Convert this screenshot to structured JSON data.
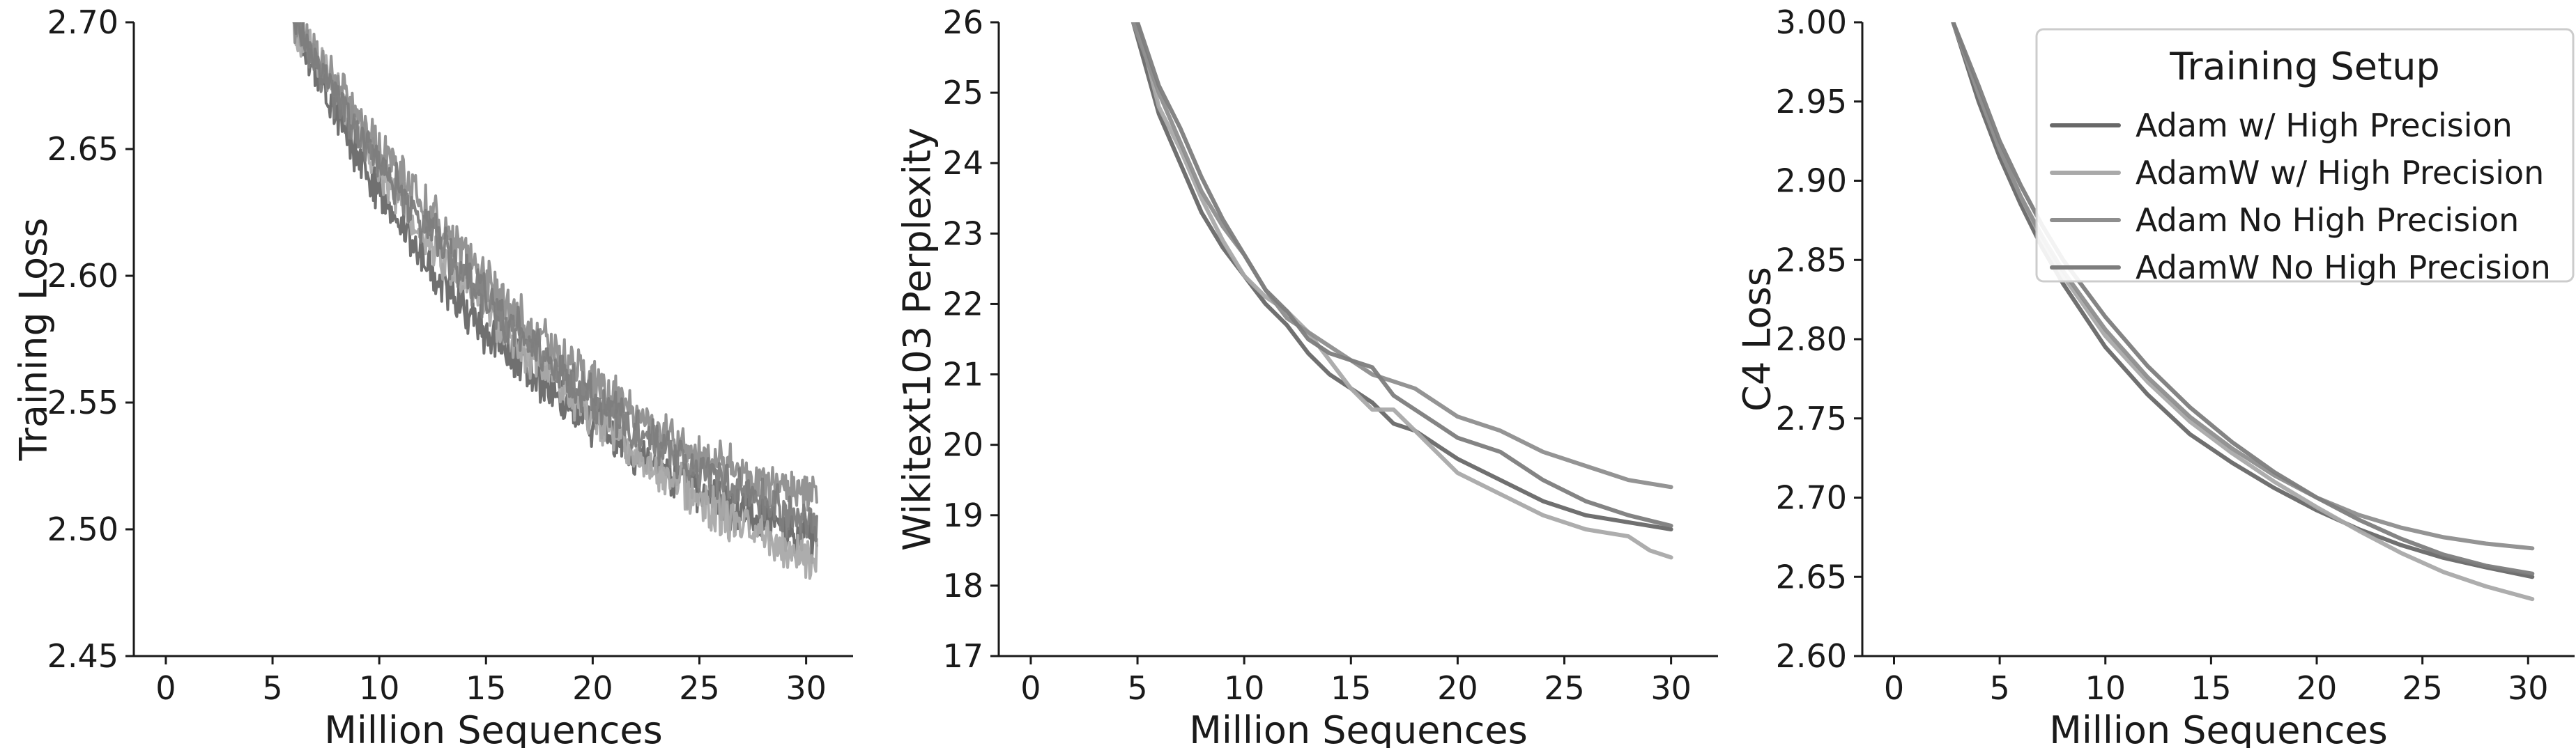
{
  "legend": {
    "title": "Training Setup",
    "entries": [
      {
        "label": "Adam w/ High Precision",
        "color": "#686868"
      },
      {
        "label": "AdamW w/ High Precision",
        "color": "#a9a9a9"
      },
      {
        "label": "Adam No High Precision",
        "color": "#8e8e8e"
      },
      {
        "label": "AdamW No High Precision",
        "color": "#7d7d7d"
      }
    ]
  },
  "chart_data": [
    {
      "type": "line",
      "xlabel": "Million Sequences",
      "ylabel": "Training Loss",
      "xlim": [
        -1.5,
        32.2
      ],
      "ylim": [
        2.45,
        2.7
      ],
      "xticks": [
        0,
        5,
        10,
        15,
        20,
        25,
        30
      ],
      "yticks": [
        "2.45",
        "2.50",
        "2.55",
        "2.60",
        "2.65",
        "2.70"
      ],
      "noise": 0.007,
      "series": [
        {
          "name": "Adam w/ High Precision",
          "color": "#686868",
          "x": [
            6,
            8,
            10,
            12,
            15,
            18,
            20,
            22,
            25,
            28,
            30.5
          ],
          "y": [
            2.7,
            2.664,
            2.632,
            2.608,
            2.578,
            2.556,
            2.542,
            2.53,
            2.515,
            2.503,
            2.495
          ]
        },
        {
          "name": "AdamW w/ High Precision",
          "color": "#a9a9a9",
          "x": [
            6,
            8,
            10,
            12,
            15,
            18,
            20,
            22,
            25,
            28,
            30.5
          ],
          "y": [
            2.7,
            2.672,
            2.642,
            2.618,
            2.586,
            2.56,
            2.545,
            2.531,
            2.512,
            2.496,
            2.487
          ]
        },
        {
          "name": "Adam No High Precision",
          "color": "#8e8e8e",
          "x": [
            6,
            8,
            10,
            12,
            15,
            18,
            20,
            22,
            25,
            28,
            30.5
          ],
          "y": [
            2.7,
            2.676,
            2.65,
            2.628,
            2.597,
            2.572,
            2.558,
            2.545,
            2.53,
            2.518,
            2.512
          ]
        },
        {
          "name": "AdamW No High Precision",
          "color": "#7d7d7d",
          "x": [
            6,
            8,
            10,
            12,
            15,
            18,
            20,
            22,
            25,
            28,
            30.5
          ],
          "y": [
            2.7,
            2.67,
            2.645,
            2.622,
            2.59,
            2.565,
            2.551,
            2.539,
            2.523,
            2.51,
            2.503
          ]
        }
      ]
    },
    {
      "type": "line",
      "xlabel": "Million Sequences",
      "ylabel": "Wikitext103 Perplexity",
      "xlim": [
        -1.5,
        32.2
      ],
      "ylim": [
        17,
        26
      ],
      "xticks": [
        0,
        5,
        10,
        15,
        20,
        25,
        30
      ],
      "yticks": [
        "17",
        "18",
        "19",
        "20",
        "21",
        "22",
        "23",
        "24",
        "25",
        "26"
      ],
      "series": [
        {
          "name": "Adam w/ High Precision",
          "color": "#686868",
          "x": [
            4.8,
            6,
            7,
            8,
            9,
            10,
            11,
            12,
            13,
            14,
            15,
            16,
            17,
            18,
            19,
            20,
            22,
            24,
            26,
            28,
            30
          ],
          "y": [
            26,
            24.7,
            24.0,
            23.3,
            22.8,
            22.4,
            22.0,
            21.7,
            21.3,
            21.0,
            20.8,
            20.6,
            20.3,
            20.2,
            20.0,
            19.8,
            19.5,
            19.2,
            19.0,
            18.9,
            18.8
          ]
        },
        {
          "name": "AdamW w/ High Precision",
          "color": "#a9a9a9",
          "x": [
            5,
            6,
            7,
            8,
            9,
            10,
            11,
            12,
            13,
            14,
            15,
            16,
            17,
            18,
            19,
            20,
            22,
            24,
            26,
            28,
            29,
            30
          ],
          "y": [
            26,
            24.8,
            24.2,
            23.5,
            22.9,
            22.4,
            22.1,
            21.9,
            21.6,
            21.2,
            20.8,
            20.5,
            20.5,
            20.2,
            19.9,
            19.6,
            19.3,
            19.0,
            18.8,
            18.7,
            18.5,
            18.4
          ]
        },
        {
          "name": "Adam No High Precision",
          "color": "#8e8e8e",
          "x": [
            4.8,
            6,
            7,
            8,
            9,
            10,
            11,
            12,
            13,
            14,
            15,
            16,
            17,
            18,
            19,
            20,
            22,
            24,
            26,
            28,
            30
          ],
          "y": [
            26,
            25.0,
            24.3,
            23.6,
            23.1,
            22.7,
            22.2,
            21.8,
            21.6,
            21.4,
            21.2,
            21.0,
            20.9,
            20.8,
            20.6,
            20.4,
            20.2,
            19.9,
            19.7,
            19.5,
            19.4
          ]
        },
        {
          "name": "AdamW No High Precision",
          "color": "#7d7d7d",
          "x": [
            5,
            6,
            7,
            8,
            9,
            10,
            11,
            12,
            13,
            14,
            15,
            16,
            17,
            18,
            19,
            20,
            22,
            24,
            26,
            28,
            30
          ],
          "y": [
            26,
            25.1,
            24.5,
            23.8,
            23.2,
            22.7,
            22.2,
            21.9,
            21.5,
            21.3,
            21.2,
            21.1,
            20.7,
            20.5,
            20.3,
            20.1,
            19.9,
            19.5,
            19.2,
            19.0,
            18.85
          ]
        }
      ]
    },
    {
      "type": "line",
      "xlabel": "Million Sequences",
      "ylabel": "C4 Loss",
      "xlim": [
        -1.5,
        32.2
      ],
      "ylim": [
        2.6,
        3.0
      ],
      "xticks": [
        0,
        5,
        10,
        15,
        20,
        25,
        30
      ],
      "yticks": [
        "2.60",
        "2.65",
        "2.70",
        "2.75",
        "2.80",
        "2.85",
        "2.90",
        "2.95",
        "3.00"
      ],
      "series": [
        {
          "name": "Adam w/ High Precision",
          "color": "#686868",
          "x": [
            2.8,
            4,
            5,
            6,
            7,
            8,
            10,
            12,
            14,
            16,
            18,
            20,
            22,
            24,
            26,
            28,
            30.2
          ],
          "y": [
            3.0,
            2.95,
            2.915,
            2.885,
            2.858,
            2.835,
            2.795,
            2.765,
            2.74,
            2.722,
            2.706,
            2.692,
            2.68,
            2.67,
            2.662,
            2.656,
            2.65
          ]
        },
        {
          "name": "AdamW w/ High Precision",
          "color": "#a9a9a9",
          "x": [
            2.8,
            4,
            5,
            6,
            7,
            8,
            10,
            12,
            14,
            16,
            18,
            20,
            22,
            24,
            26,
            28,
            30.2
          ],
          "y": [
            3.0,
            2.955,
            2.92,
            2.89,
            2.863,
            2.84,
            2.802,
            2.773,
            2.748,
            2.728,
            2.71,
            2.694,
            2.679,
            2.665,
            2.653,
            2.644,
            2.636
          ]
        },
        {
          "name": "Adam No High Precision",
          "color": "#8e8e8e",
          "x": [
            2.8,
            4,
            5,
            6,
            7,
            8,
            10,
            12,
            14,
            16,
            18,
            20,
            22,
            24,
            26,
            28,
            30.2
          ],
          "y": [
            3.0,
            2.955,
            2.92,
            2.89,
            2.865,
            2.843,
            2.806,
            2.776,
            2.751,
            2.731,
            2.714,
            2.7,
            2.689,
            2.681,
            2.675,
            2.671,
            2.668
          ]
        },
        {
          "name": "AdamW No High Precision",
          "color": "#7d7d7d",
          "x": [
            2.8,
            4,
            5,
            6,
            7,
            8,
            10,
            12,
            14,
            16,
            18,
            20,
            22,
            24,
            26,
            28,
            30.2
          ],
          "y": [
            3.0,
            2.96,
            2.925,
            2.897,
            2.872,
            2.85,
            2.814,
            2.783,
            2.757,
            2.735,
            2.716,
            2.7,
            2.686,
            2.674,
            2.664,
            2.657,
            2.652
          ]
        }
      ]
    }
  ]
}
